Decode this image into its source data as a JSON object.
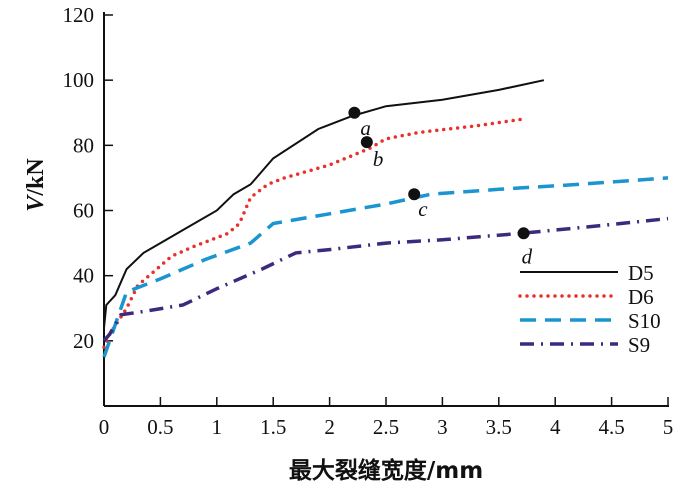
{
  "chart_data": {
    "type": "line",
    "title": "",
    "xlabel": "最大裂缝宽度/mm",
    "ylabel_italic": "V",
    "ylabel_rest": "/kN",
    "xlim": [
      0,
      5
    ],
    "ylim": [
      0,
      120
    ],
    "xticks": [
      "0",
      "0.5",
      "1",
      "1.5",
      "2",
      "2.5",
      "3",
      "3.5",
      "4",
      "4.5",
      "5"
    ],
    "yticks": [
      "20",
      "40",
      "60",
      "80",
      "100",
      "120"
    ],
    "grid": false,
    "legend_position": "bottom-right",
    "series": [
      {
        "name": "D5",
        "color": "#111111",
        "style": "solid",
        "x": [
          0,
          0.02,
          0.1,
          0.15,
          0.2,
          0.35,
          0.5,
          0.7,
          1.0,
          1.15,
          1.3,
          1.5,
          1.9,
          2.2,
          2.5,
          3.0,
          3.5,
          3.9
        ],
        "y": [
          24,
          31,
          34,
          38,
          42,
          47,
          50,
          54,
          60,
          65,
          68,
          76,
          85,
          89,
          92,
          94,
          97,
          100
        ]
      },
      {
        "name": "D6",
        "color": "#e8312a",
        "style": "dotted",
        "x": [
          0,
          0.05,
          0.2,
          0.3,
          0.6,
          0.8,
          1.1,
          1.2,
          1.3,
          1.45,
          1.6,
          2.0,
          2.35,
          2.5,
          2.8,
          3.3,
          3.7
        ],
        "y": [
          18,
          22,
          30,
          37,
          46,
          49,
          53,
          56,
          64,
          68,
          70,
          74,
          79,
          82,
          84,
          86,
          88
        ]
      },
      {
        "name": "S10",
        "color": "#1a95cf",
        "style": "dashed",
        "x": [
          0,
          0.1,
          0.2,
          0.5,
          0.9,
          1.3,
          1.5,
          2.0,
          2.5,
          2.9,
          3.5,
          4.2,
          5.0
        ],
        "y": [
          15,
          25,
          35,
          39,
          45,
          50,
          56,
          59,
          62,
          65,
          66.5,
          68,
          70
        ]
      },
      {
        "name": "S9",
        "color": "#3d2a7e",
        "style": "dashdot",
        "x": [
          0,
          0.05,
          0.15,
          0.35,
          0.7,
          1.0,
          1.4,
          1.7,
          2.0,
          2.5,
          3.0,
          3.7,
          4.3,
          5.0
        ],
        "y": [
          20,
          22,
          28,
          29,
          31,
          36,
          42,
          47,
          48,
          50,
          51,
          53,
          55,
          57.5
        ]
      }
    ],
    "annotations": [
      {
        "label": "a",
        "x": 2.22,
        "y": 90
      },
      {
        "label": "b",
        "x": 2.33,
        "y": 81
      },
      {
        "label": "c",
        "x": 2.75,
        "y": 65
      },
      {
        "label": "d",
        "x": 3.72,
        "y": 53
      }
    ]
  }
}
